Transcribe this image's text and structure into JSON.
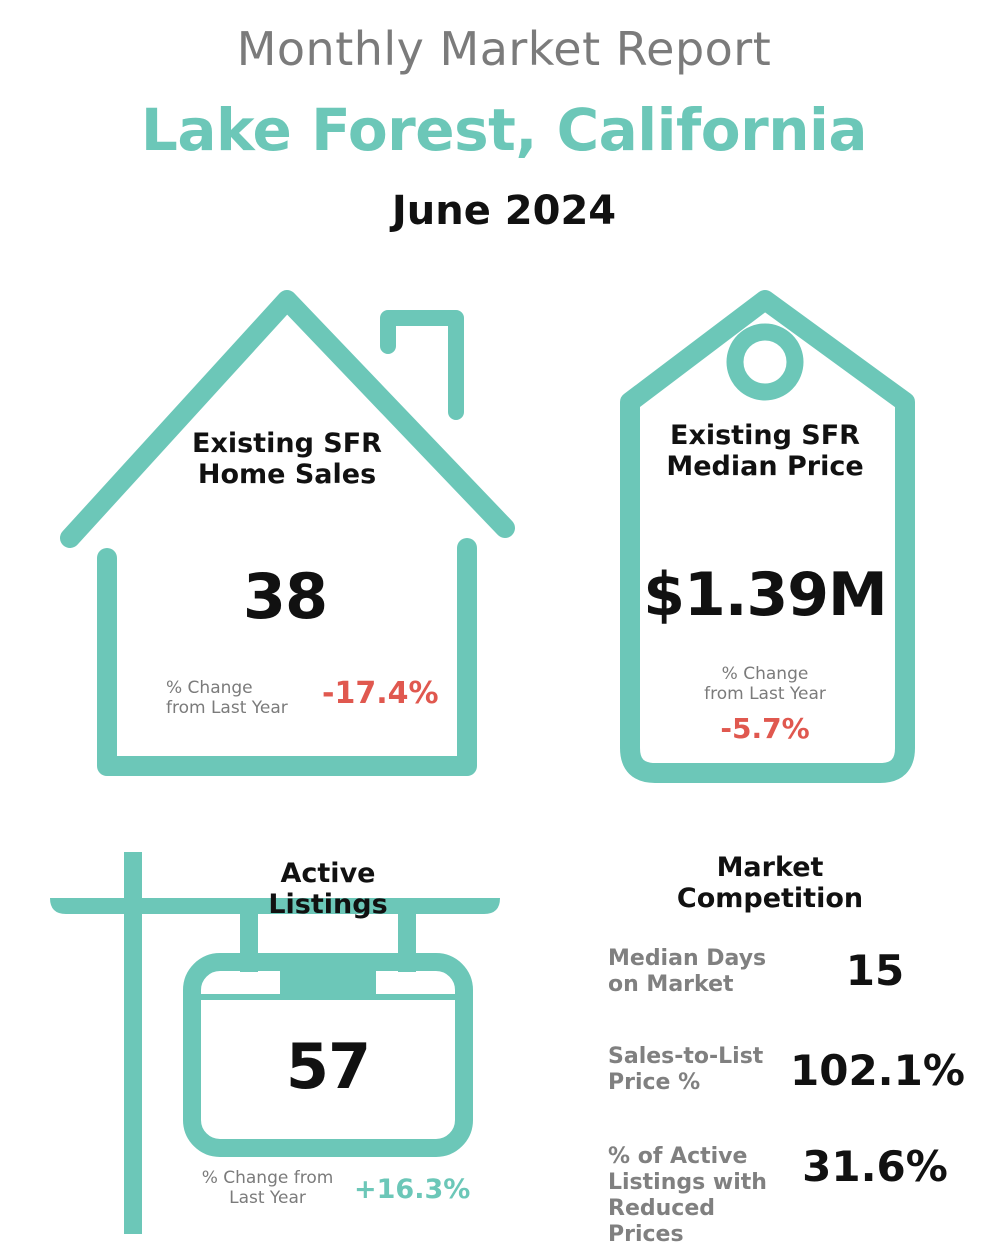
{
  "header": {
    "report_title": "Monthly Market Report",
    "location": "Lake Forest, California",
    "period": "June 2024"
  },
  "colors": {
    "accent": "#6cc7b8",
    "negative": "#e0584f",
    "positive": "#6cc7b8",
    "label_gray": "#7b7b7b"
  },
  "home_sales": {
    "icon": "house-icon",
    "title_line1": "Existing SFR",
    "title_line2": "Home Sales",
    "value": "38",
    "change_label_line1": "% Change",
    "change_label_line2": "from Last Year",
    "change_value": "-17.4%"
  },
  "median_price": {
    "icon": "price-tag-icon",
    "title_line1": "Existing SFR",
    "title_line2": "Median Price",
    "value": "$1.39M",
    "change_label_line1": "% Change",
    "change_label_line2": "from Last Year",
    "change_value": "-5.7%"
  },
  "active_listings": {
    "icon": "for-sale-sign-icon",
    "title": "Active Listings",
    "value": "57",
    "change_label_line1": "% Change from",
    "change_label_line2": "Last Year",
    "change_value": "+16.3%"
  },
  "market_competition": {
    "title_line1": "Market",
    "title_line2": "Competition",
    "metrics": [
      {
        "label_line1": "Median Days",
        "label_line2": "on Market",
        "label_line3": "",
        "value": "15"
      },
      {
        "label_line1": "Sales-to-List",
        "label_line2": "Price %",
        "label_line3": "",
        "value": "102.1%"
      },
      {
        "label_line1": "% of Active",
        "label_line2": "Listings with",
        "label_line3": "Reduced Prices",
        "value": "31.6%"
      }
    ]
  }
}
